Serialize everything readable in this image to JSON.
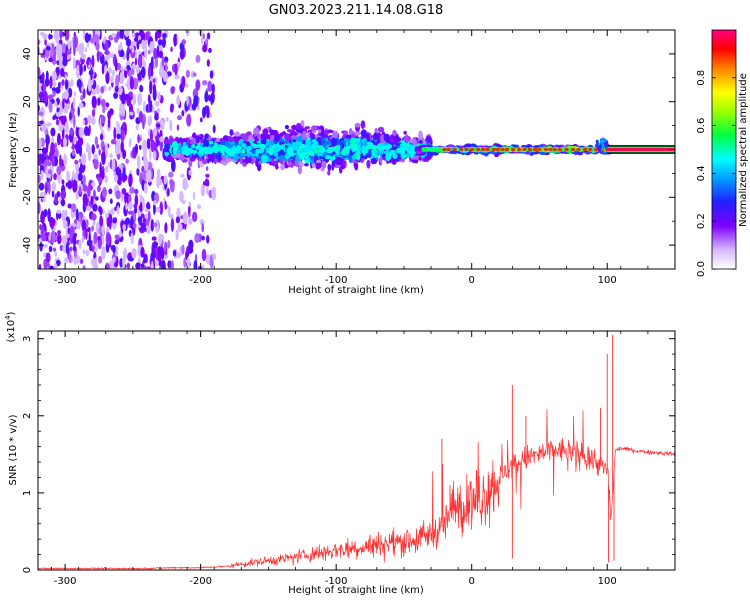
{
  "figure_title": "GN03.2023.211.14.08.G18",
  "chart_data": [
    {
      "type": "heatmap",
      "title": "",
      "xlabel": "Height of straight line (km)",
      "ylabel": "Frequency (Hz)",
      "xlim": [
        -320,
        150
      ],
      "ylim": [
        -50,
        50
      ],
      "x_ticks": [
        -300,
        -200,
        -100,
        0,
        100
      ],
      "y_ticks": [
        -40,
        -20,
        0,
        20,
        40
      ],
      "grid": false,
      "colorbar": {
        "label": "Normalized spectral amplitude",
        "range": [
          0,
          1
        ],
        "ticks": [
          "0.0",
          "0.2",
          "0.4",
          "0.6",
          "0.8"
        ],
        "colormap": [
          "#ffffff",
          "#8000ff",
          "#0000ff",
          "#00a0ff",
          "#00ffff",
          "#00ff00",
          "#ffff00",
          "#ff8000",
          "#ff0000",
          "#ff0080"
        ]
      },
      "segments": [
        {
          "x_range": [
            -320,
            -230
          ],
          "description_level": 0.25,
          "spread_hz": 50
        },
        {
          "x_range": [
            -230,
            -185
          ],
          "description_level": 0.15,
          "spread_hz": 50
        },
        {
          "x_range": [
            -225,
            -30
          ],
          "description_level": 0.5,
          "spread_hz": 10
        },
        {
          "x_range": [
            -30,
            100
          ],
          "description_level": 0.75,
          "spread_hz": 3
        },
        {
          "x_range": [
            100,
            150
          ],
          "description_level": 0.98,
          "spread_hz": 1
        }
      ]
    },
    {
      "type": "line",
      "title": "",
      "xlabel": "Height of straight line (km)",
      "ylabel": "SNR (10 * v/v)",
      "y_scale_label": "(x10",
      "y_scale_exp": "4",
      "xlim": [
        -320,
        150
      ],
      "ylim": [
        0,
        3.1
      ],
      "x_ticks": [
        -300,
        -200,
        -100,
        0,
        100
      ],
      "y_ticks": [
        0,
        1,
        2,
        3
      ],
      "grid": false,
      "line_color": "#ff3030",
      "series": [
        {
          "x": [
            -320,
            -300,
            -280,
            -260,
            -240,
            -220,
            -200,
            -180,
            -160,
            -140,
            -120,
            -100,
            -80,
            -60,
            -40,
            -30,
            -25,
            -20,
            -15,
            -10,
            -5,
            0,
            10,
            20,
            30,
            40,
            50,
            60,
            70,
            80,
            90,
            95,
            100,
            103,
            106,
            110,
            120,
            130,
            140,
            150
          ],
          "y": [
            0.02,
            0.02,
            0.02,
            0.02,
            0.02,
            0.03,
            0.03,
            0.05,
            0.1,
            0.14,
            0.2,
            0.26,
            0.3,
            0.35,
            0.4,
            0.45,
            0.5,
            0.6,
            0.75,
            0.8,
            0.85,
            0.85,
            1.0,
            1.2,
            1.35,
            1.45,
            1.5,
            1.55,
            1.55,
            1.5,
            1.45,
            1.35,
            1.3,
            0.7,
            1.55,
            1.58,
            1.55,
            1.53,
            1.52,
            1.5
          ]
        }
      ],
      "spikes": [
        {
          "x": -22,
          "y": 1.7
        },
        {
          "x": -16,
          "y": 1.1
        },
        {
          "x": 30,
          "y": 2.4
        },
        {
          "x": 30,
          "y": 0.15
        },
        {
          "x": 40,
          "y": 2.0
        },
        {
          "x": 95,
          "y": 2.1
        },
        {
          "x": 100,
          "y": 2.8
        },
        {
          "x": 101,
          "y": 0.1
        },
        {
          "x": 104,
          "y": 3.05
        },
        {
          "x": 105,
          "y": 0.12
        }
      ]
    }
  ]
}
